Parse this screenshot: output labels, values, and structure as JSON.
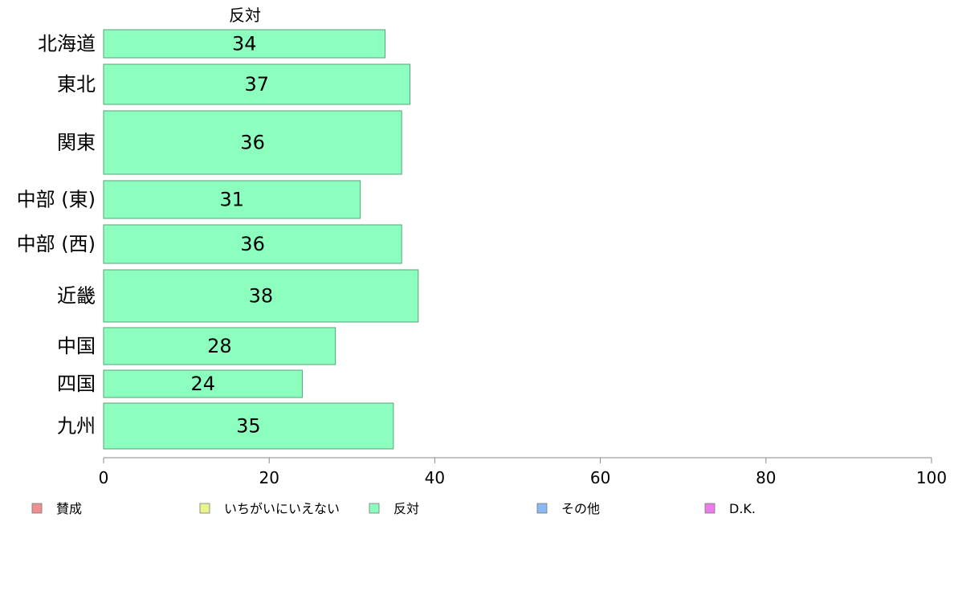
{
  "chart_data": {
    "type": "bar",
    "orientation": "horizontal",
    "column_title": "反対",
    "categories": [
      "北海道",
      "東北",
      "関東",
      "中部 (東)",
      "中部 (西)",
      "近畿",
      "中国",
      "四国",
      "九州"
    ],
    "series": [
      {
        "name": "反対",
        "values": [
          34,
          37,
          36,
          31,
          36,
          38,
          28,
          24,
          35
        ]
      }
    ],
    "xlim": [
      0,
      100
    ],
    "xticks": [
      0,
      20,
      40,
      60,
      80,
      100
    ],
    "grid": false,
    "legend_position": "bottom",
    "legend": [
      {
        "label": "賛成",
        "color": "#f08f8f"
      },
      {
        "label": "いちがいにいえない",
        "color": "#e8f48c"
      },
      {
        "label": "反対",
        "color": "#8cffbf"
      },
      {
        "label": "その他",
        "color": "#8cb8f4"
      },
      {
        "label": "D.K.",
        "color": "#ec7cec"
      }
    ],
    "bar_color": "#8cffbf",
    "bar_stroke": "#5aa27a"
  }
}
